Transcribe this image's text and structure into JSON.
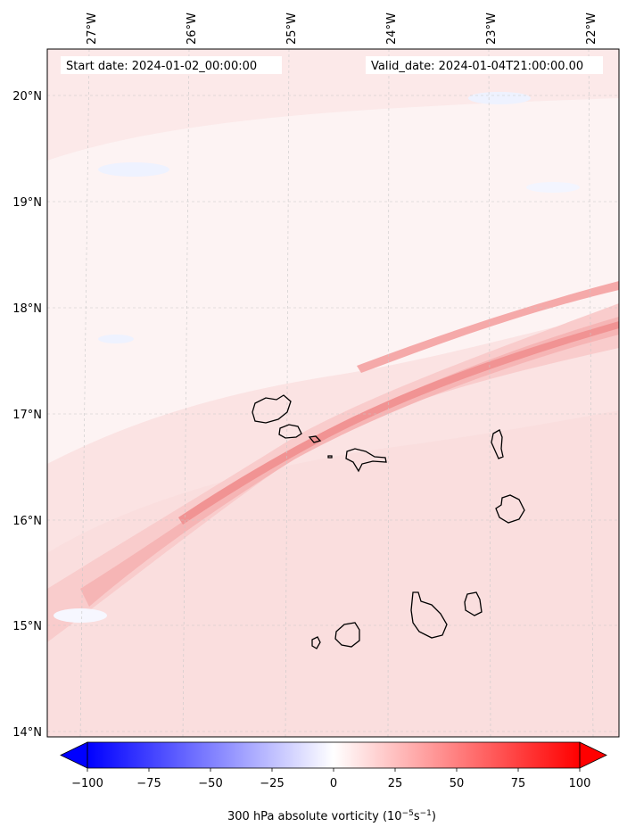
{
  "header": {
    "start_date": "Start date: 2024-01-02_00:00:00",
    "valid_date": "Valid_date: 2024-01-04T21:00:00.00"
  },
  "axes": {
    "lon_labels": [
      "27°W",
      "26°W",
      "25°W",
      "24°W",
      "23°W",
      "22°W"
    ],
    "lat_labels": [
      "20°N",
      "19°N",
      "18°N",
      "17°N",
      "16°N",
      "15°N",
      "14°N"
    ]
  },
  "colorbar": {
    "ticks": [
      "−100",
      "−75",
      "−50",
      "−25",
      "0",
      "25",
      "50",
      "75",
      "100"
    ],
    "label_prefix": "300 hPa absolute vorticity (10",
    "label_exp1": "−5",
    "label_mid": "s",
    "label_exp2": "−1",
    "label_suffix": ")",
    "min_color": "#0000ff",
    "mid_color": "#ffffff",
    "max_color": "#ff0000"
  },
  "colors": {
    "background_pale": "#fdf3f3",
    "band_light": "#fbe0e0",
    "band_mid": "#f9c9c9",
    "band_strong": "#f5a9a9",
    "band_core": "#f28e8e",
    "negative_tint": "#eef2ff",
    "coastline": "#000000"
  }
}
